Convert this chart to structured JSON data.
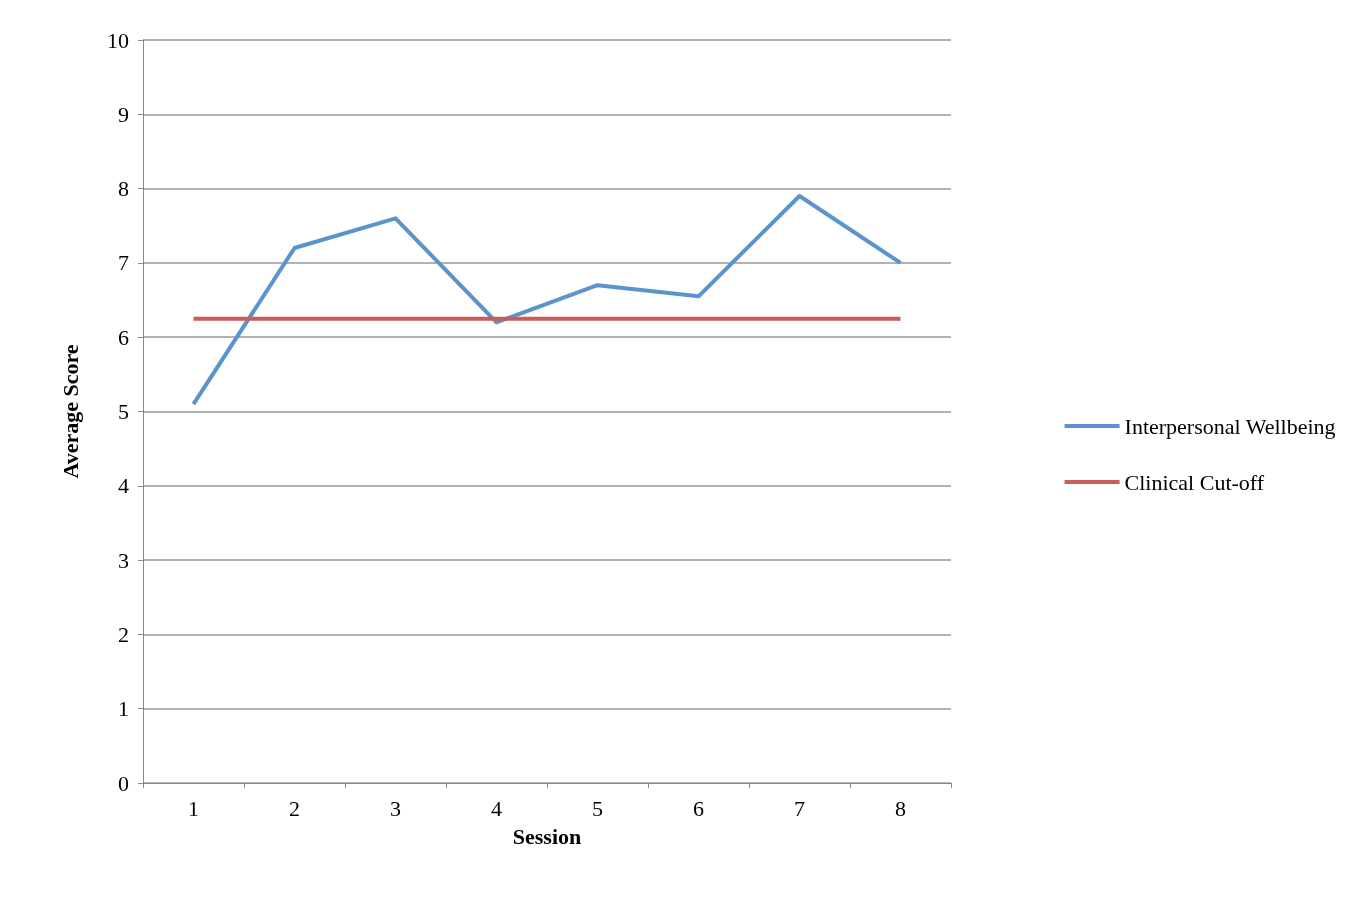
{
  "chart_data": {
    "type": "line",
    "xlabel": "Session",
    "ylabel": "Average Score",
    "categories": [
      "1",
      "2",
      "3",
      "4",
      "5",
      "6",
      "7",
      "8"
    ],
    "series": [
      {
        "name": "Interpersonal Wellbeing",
        "color": "#5b93cc",
        "values": [
          5.1,
          7.2,
          7.6,
          6.2,
          6.7,
          6.55,
          7.9,
          7.0
        ]
      },
      {
        "name": "Clinical Cut-off",
        "color": "#cb5d58",
        "values": [
          6.25,
          6.25,
          6.25,
          6.25,
          6.25,
          6.25,
          6.25,
          6.25
        ]
      }
    ],
    "ylim": [
      0,
      10
    ],
    "yticks": [
      0,
      1,
      2,
      3,
      4,
      5,
      6,
      7,
      8,
      9,
      10
    ],
    "grid": "y",
    "legend": "right",
    "marker": "none",
    "line_style": "solid"
  }
}
